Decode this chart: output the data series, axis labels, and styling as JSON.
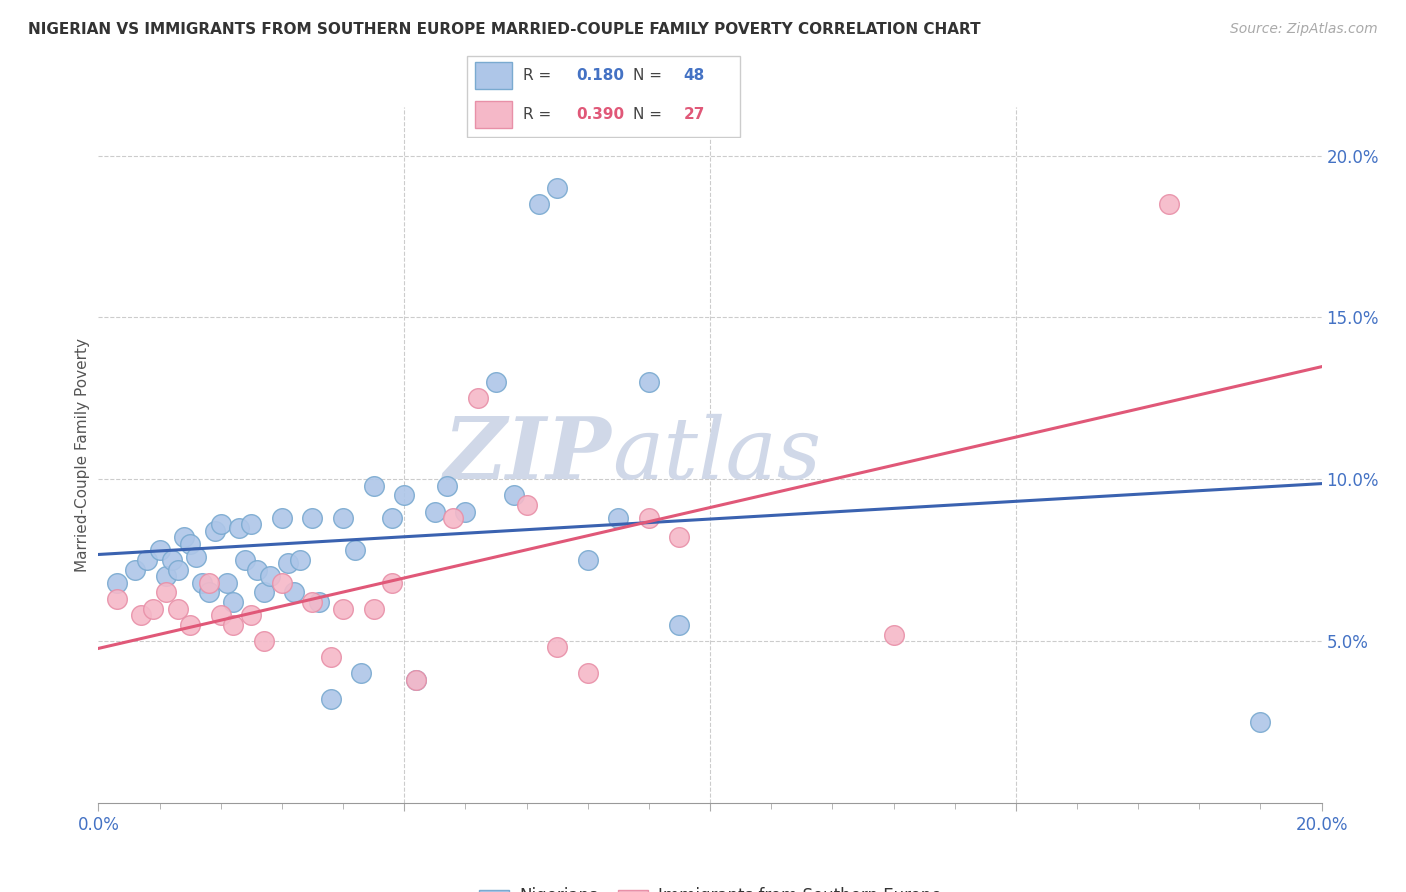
{
  "title": "NIGERIAN VS IMMIGRANTS FROM SOUTHERN EUROPE MARRIED-COUPLE FAMILY POVERTY CORRELATION CHART",
  "source": "Source: ZipAtlas.com",
  "ylabel": "Married-Couple Family Poverty",
  "xlim": [
    0,
    0.2
  ],
  "ylim": [
    0,
    0.215
  ],
  "yticks": [
    0.05,
    0.1,
    0.15,
    0.2
  ],
  "ytick_labels": [
    "5.0%",
    "10.0%",
    "15.0%",
    "20.0%"
  ],
  "blue_color": "#aec6e8",
  "pink_color": "#f5b8c8",
  "blue_edge": "#7aaad0",
  "pink_edge": "#e890a8",
  "blue_line": "#3a62b0",
  "pink_line": "#e05878",
  "blue_text": "#4472c4",
  "pink_text": "#e05878",
  "watermark_color": "#d0d8e8",
  "nigerian_x": [
    0.003,
    0.006,
    0.008,
    0.01,
    0.011,
    0.012,
    0.013,
    0.014,
    0.015,
    0.016,
    0.017,
    0.018,
    0.019,
    0.02,
    0.021,
    0.022,
    0.023,
    0.024,
    0.025,
    0.026,
    0.027,
    0.028,
    0.03,
    0.031,
    0.032,
    0.033,
    0.035,
    0.036,
    0.038,
    0.04,
    0.042,
    0.043,
    0.045,
    0.048,
    0.05,
    0.052,
    0.055,
    0.057,
    0.06,
    0.065,
    0.068,
    0.072,
    0.075,
    0.08,
    0.085,
    0.09,
    0.095,
    0.19
  ],
  "nigerian_y": [
    0.068,
    0.072,
    0.075,
    0.078,
    0.07,
    0.075,
    0.072,
    0.082,
    0.08,
    0.076,
    0.068,
    0.065,
    0.084,
    0.086,
    0.068,
    0.062,
    0.085,
    0.075,
    0.086,
    0.072,
    0.065,
    0.07,
    0.088,
    0.074,
    0.065,
    0.075,
    0.088,
    0.062,
    0.032,
    0.088,
    0.078,
    0.04,
    0.098,
    0.088,
    0.095,
    0.038,
    0.09,
    0.098,
    0.09,
    0.13,
    0.095,
    0.185,
    0.19,
    0.075,
    0.088,
    0.13,
    0.055,
    0.025
  ],
  "southern_x": [
    0.003,
    0.007,
    0.009,
    0.011,
    0.013,
    0.015,
    0.018,
    0.02,
    0.022,
    0.025,
    0.027,
    0.03,
    0.035,
    0.038,
    0.04,
    0.045,
    0.048,
    0.052,
    0.058,
    0.062,
    0.07,
    0.075,
    0.08,
    0.09,
    0.095,
    0.13,
    0.175
  ],
  "southern_y": [
    0.063,
    0.058,
    0.06,
    0.065,
    0.06,
    0.055,
    0.068,
    0.058,
    0.055,
    0.058,
    0.05,
    0.068,
    0.062,
    0.045,
    0.06,
    0.06,
    0.068,
    0.038,
    0.088,
    0.125,
    0.092,
    0.048,
    0.04,
    0.088,
    0.082,
    0.052,
    0.185
  ]
}
